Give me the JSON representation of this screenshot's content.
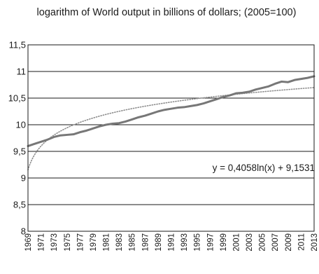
{
  "chart_data": {
    "type": "line",
    "title": "logarithm of World output in billions of dollars; (2005=100)",
    "xlabel": "",
    "ylabel": "",
    "ylim": [
      8,
      11.5
    ],
    "yticks": [
      "8",
      "8,5",
      "9",
      "9,5",
      "10",
      "10,5",
      "11",
      "11,5"
    ],
    "xticks": [
      "1969",
      "1971",
      "1973",
      "1975",
      "1977",
      "1979",
      "1981",
      "1983",
      "1985",
      "1987",
      "1989",
      "1991",
      "1993",
      "1995",
      "1997",
      "1999",
      "2001",
      "2003",
      "2005",
      "2007",
      "2009",
      "2011",
      "2013"
    ],
    "grid": true,
    "x": [
      1969,
      1970,
      1971,
      1972,
      1973,
      1974,
      1975,
      1976,
      1977,
      1978,
      1979,
      1980,
      1981,
      1982,
      1983,
      1984,
      1985,
      1986,
      1987,
      1988,
      1989,
      1990,
      1991,
      1992,
      1993,
      1994,
      1995,
      1996,
      1997,
      1998,
      1999,
      2000,
      2001,
      2002,
      2003,
      2004,
      2005,
      2006,
      2007,
      2008,
      2009,
      2010,
      2011,
      2012,
      2013
    ],
    "series": [
      {
        "values": [
          9.6,
          9.64,
          9.68,
          9.72,
          9.77,
          9.8,
          9.81,
          9.82,
          9.86,
          9.89,
          9.93,
          9.97,
          10.0,
          10.02,
          10.03,
          10.06,
          10.1,
          10.14,
          10.17,
          10.21,
          10.25,
          10.28,
          10.3,
          10.32,
          10.33,
          10.35,
          10.37,
          10.4,
          10.44,
          10.48,
          10.52,
          10.55,
          10.59,
          10.6,
          10.62,
          10.66,
          10.69,
          10.72,
          10.77,
          10.81,
          10.8,
          10.84,
          10.86,
          10.88,
          10.91
        ],
        "color": "#777777",
        "style": "solid"
      },
      {
        "trendline": "logarithmic",
        "coef_a": 0.4058,
        "coef_b": 9.1531,
        "color": "#8f8f8f",
        "style": "dotted"
      }
    ],
    "annotations": [
      {
        "text": "y = 0,4058ln(x) + 9,1531"
      }
    ]
  }
}
